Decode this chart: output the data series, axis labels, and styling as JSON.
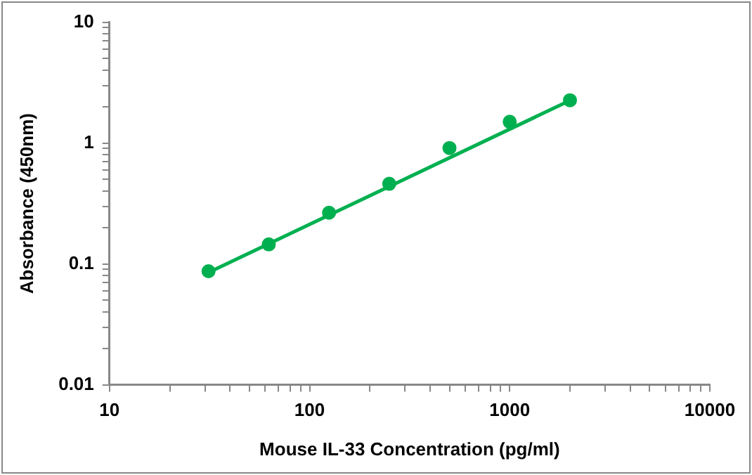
{
  "chart_data": {
    "type": "scatter",
    "xlabel": "Mouse IL-33 Concentration (pg/ml)",
    "ylabel": "Absorbance (450nm)",
    "log": "xy",
    "marker": "circle",
    "legend": false,
    "grid": false,
    "xlim": [
      10,
      10000
    ],
    "ylim": [
      0.01,
      10
    ],
    "xticks": [
      10,
      {
        "value": 20,
        "label": null
      },
      {
        "value": 30,
        "label": null
      },
      {
        "value": 40,
        "label": null
      },
      {
        "value": 50,
        "label": null
      },
      {
        "value": 60,
        "label": null
      },
      {
        "value": 70,
        "label": null
      },
      {
        "value": 80,
        "label": null
      },
      {
        "value": 90,
        "label": null
      },
      100,
      {
        "value": 200,
        "label": null
      },
      {
        "value": 300,
        "label": null
      },
      {
        "value": 400,
        "label": null
      },
      {
        "value": 500,
        "label": null
      },
      {
        "value": 600,
        "label": null
      },
      {
        "value": 700,
        "label": null
      },
      {
        "value": 800,
        "label": null
      },
      {
        "value": 900,
        "label": null
      },
      1000,
      {
        "value": 2000,
        "label": null
      },
      {
        "value": 3000,
        "label": null
      },
      {
        "value": 4000,
        "label": null
      },
      {
        "value": 5000,
        "label": null
      },
      {
        "value": 6000,
        "label": null
      },
      {
        "value": 7000,
        "label": null
      },
      {
        "value": 8000,
        "label": null
      },
      {
        "value": 9000,
        "label": null
      },
      10000
    ],
    "yticks": [
      0.01,
      {
        "value": 0.02,
        "label": null
      },
      {
        "value": 0.03,
        "label": null
      },
      {
        "value": 0.04,
        "label": null
      },
      {
        "value": 0.05,
        "label": null
      },
      {
        "value": 0.06,
        "label": null
      },
      {
        "value": 0.07,
        "label": null
      },
      {
        "value": 0.08,
        "label": null
      },
      {
        "value": 0.09,
        "label": null
      },
      0.1,
      {
        "value": 0.2,
        "label": null
      },
      {
        "value": 0.3,
        "label": null
      },
      {
        "value": 0.4,
        "label": null
      },
      {
        "value": 0.5,
        "label": null
      },
      {
        "value": 0.6,
        "label": null
      },
      {
        "value": 0.7,
        "label": null
      },
      {
        "value": 0.8,
        "label": null
      },
      {
        "value": 0.9,
        "label": null
      },
      1,
      {
        "value": 2,
        "label": null
      },
      {
        "value": 3,
        "label": null
      },
      {
        "value": 4,
        "label": null
      },
      {
        "value": 5,
        "label": null
      },
      {
        "value": 6,
        "label": null
      },
      {
        "value": 7,
        "label": null
      },
      {
        "value": 8,
        "label": null
      },
      {
        "value": 9,
        "label": null
      },
      10
    ],
    "series": [
      {
        "color": "#00b050",
        "x": [
          31.25,
          62.5,
          125,
          250,
          500,
          1000,
          2000
        ],
        "values": [
          0.087,
          0.145,
          0.265,
          0.46,
          0.91,
          1.5,
          2.26
        ]
      },
      {
        "type": "line",
        "color": "#00b050",
        "marker": "none",
        "x": [
          31.25,
          2000
        ],
        "values": [
          0.085,
          2.25
        ]
      }
    ]
  }
}
